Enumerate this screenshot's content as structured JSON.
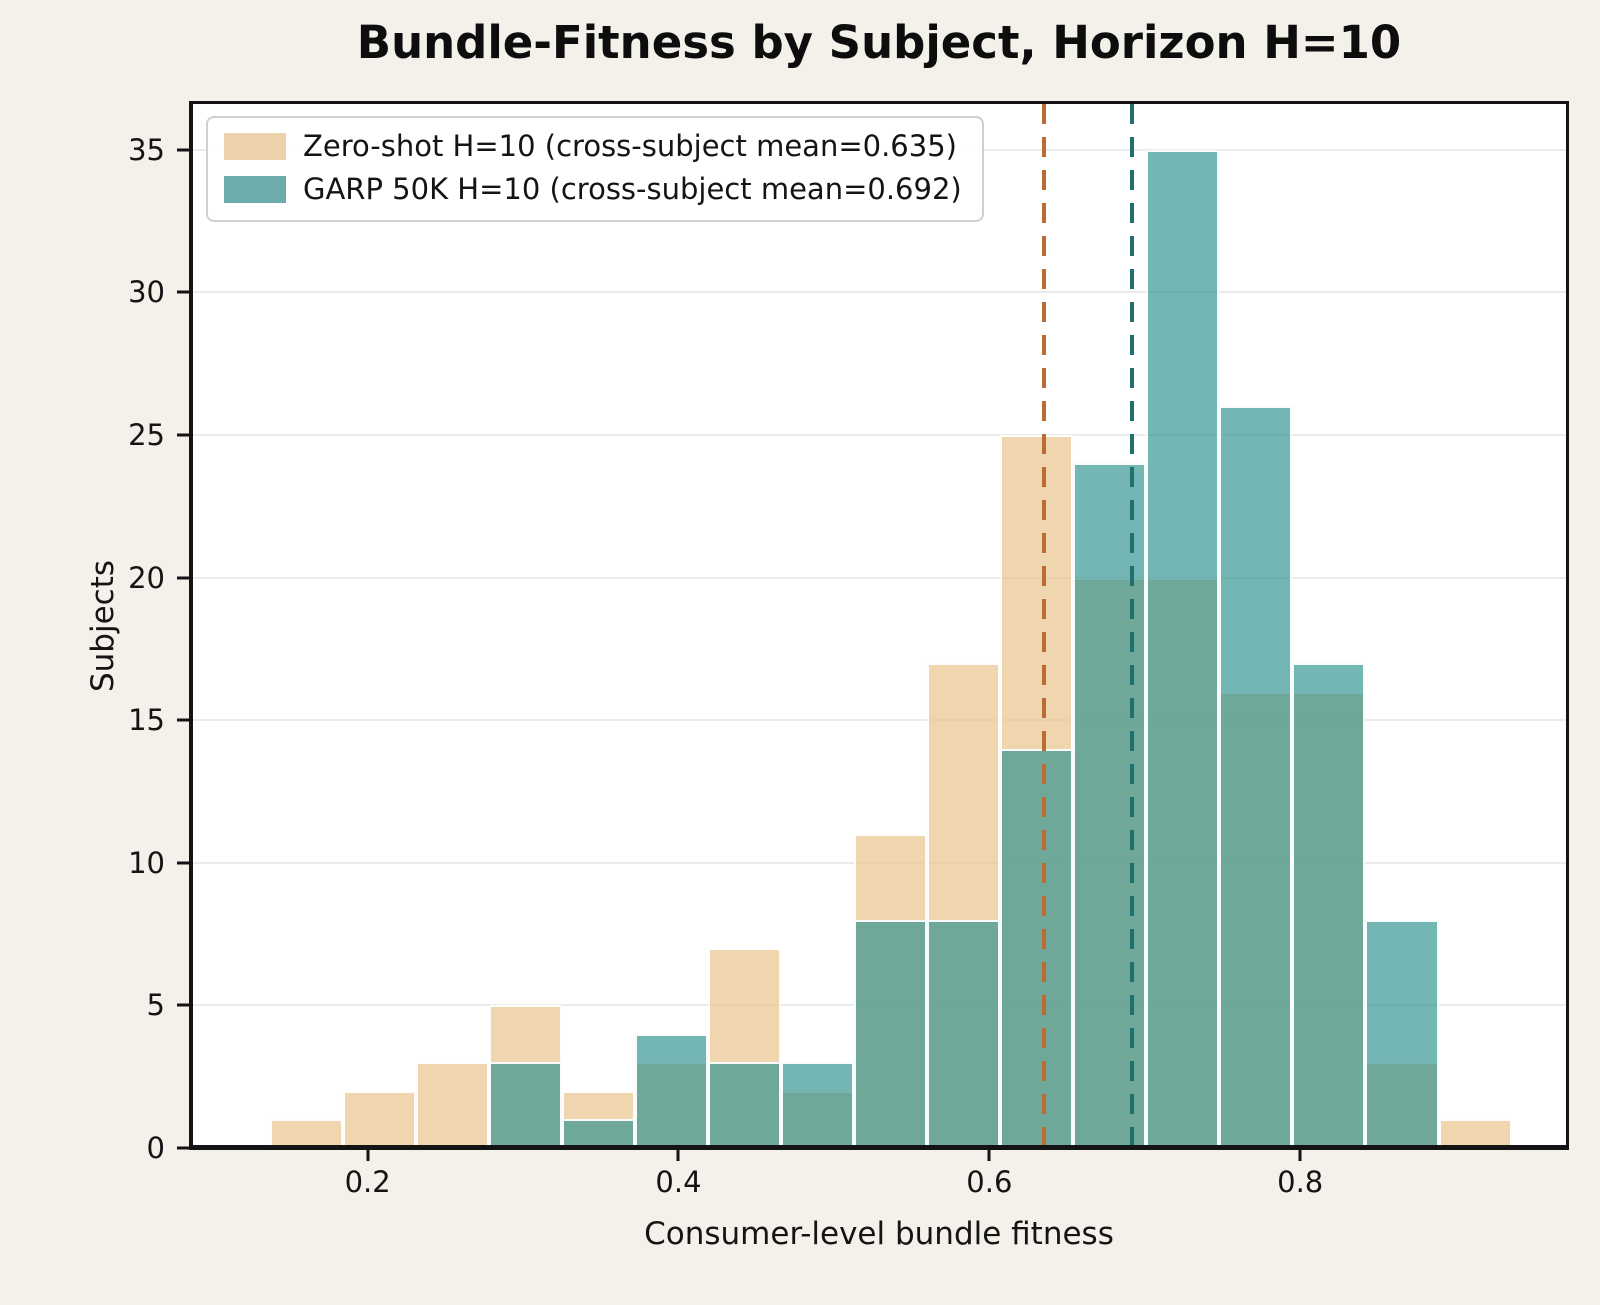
{
  "figure": {
    "title": "Bundle-Fitness by Subject, Horizon H=10"
  },
  "axes": {
    "xlabel": "Consumer-level bundle fitness",
    "ylabel": "Subjects",
    "x_tick_labels": [
      "0.2",
      "0.4",
      "0.6",
      "0.8"
    ],
    "y_tick_labels": [
      "0",
      "5",
      "10",
      "15",
      "20",
      "25",
      "30",
      "35"
    ]
  },
  "legend": {
    "entries": [
      {
        "label": "Zero-shot H=10 (cross-subject mean=0.635)",
        "swatch_color": "#ECD2AA"
      },
      {
        "label": "GARP 50K H=10 (cross-subject mean=0.692)",
        "swatch_color": "#6CADAB"
      }
    ]
  },
  "colors": {
    "figure_background": "#F4F1EB",
    "plot_background": "#FFFFFF",
    "gridline": "#EBEBEB",
    "spine": "#141414",
    "zero_shot_fill": "#E8C48D",
    "garp_fill": "#2A8F8C",
    "zero_shot_mean_line": "#BC6B33",
    "garp_mean_line": "#1F7170"
  },
  "chart_data": {
    "type": "bar",
    "subtype": "overlapping_histogram",
    "title": "Bundle-Fitness by Subject, Horizon H=10",
    "xlabel": "Consumer-level bundle fitness",
    "ylabel": "Subjects",
    "xlim": [
      0.087,
      0.971
    ],
    "ylim": [
      0,
      36.6
    ],
    "x_ticks": [
      0.2,
      0.4,
      0.6,
      0.8
    ],
    "y_ticks": [
      0,
      5,
      10,
      15,
      20,
      25,
      30,
      35
    ],
    "grid": "horizontal",
    "legend_position": "upper left",
    "bin_edges": [
      0.137,
      0.184,
      0.231,
      0.278,
      0.325,
      0.372,
      0.419,
      0.466,
      0.513,
      0.56,
      0.607,
      0.654,
      0.701,
      0.748,
      0.795,
      0.842,
      0.889,
      0.936
    ],
    "series": [
      {
        "key": "zero-shot",
        "name": "Zero-shot H=10",
        "legend_label": "Zero-shot H=10 (cross-subject mean=0.635)",
        "fill_color": "#E8C48D",
        "opacity": 0.7,
        "edge_color": "#FFFFFF",
        "mean": 0.635,
        "mean_line_color": "#BC6B33",
        "counts": [
          1,
          2,
          3,
          5,
          2,
          3,
          7,
          2,
          11,
          17,
          25,
          20,
          20,
          16,
          16,
          3,
          1
        ]
      },
      {
        "key": "garp-50k",
        "name": "GARP 50K H=10",
        "legend_label": "GARP 50K H=10 (cross-subject mean=0.692)",
        "fill_color": "#2A8F8C",
        "opacity": 0.65,
        "edge_color": "#FFFFFF",
        "mean": 0.692,
        "mean_line_color": "#1F7170",
        "counts": [
          0,
          0,
          0,
          3,
          1,
          4,
          3,
          3,
          8,
          8,
          14,
          24,
          35,
          26,
          17,
          8,
          0
        ]
      }
    ]
  }
}
